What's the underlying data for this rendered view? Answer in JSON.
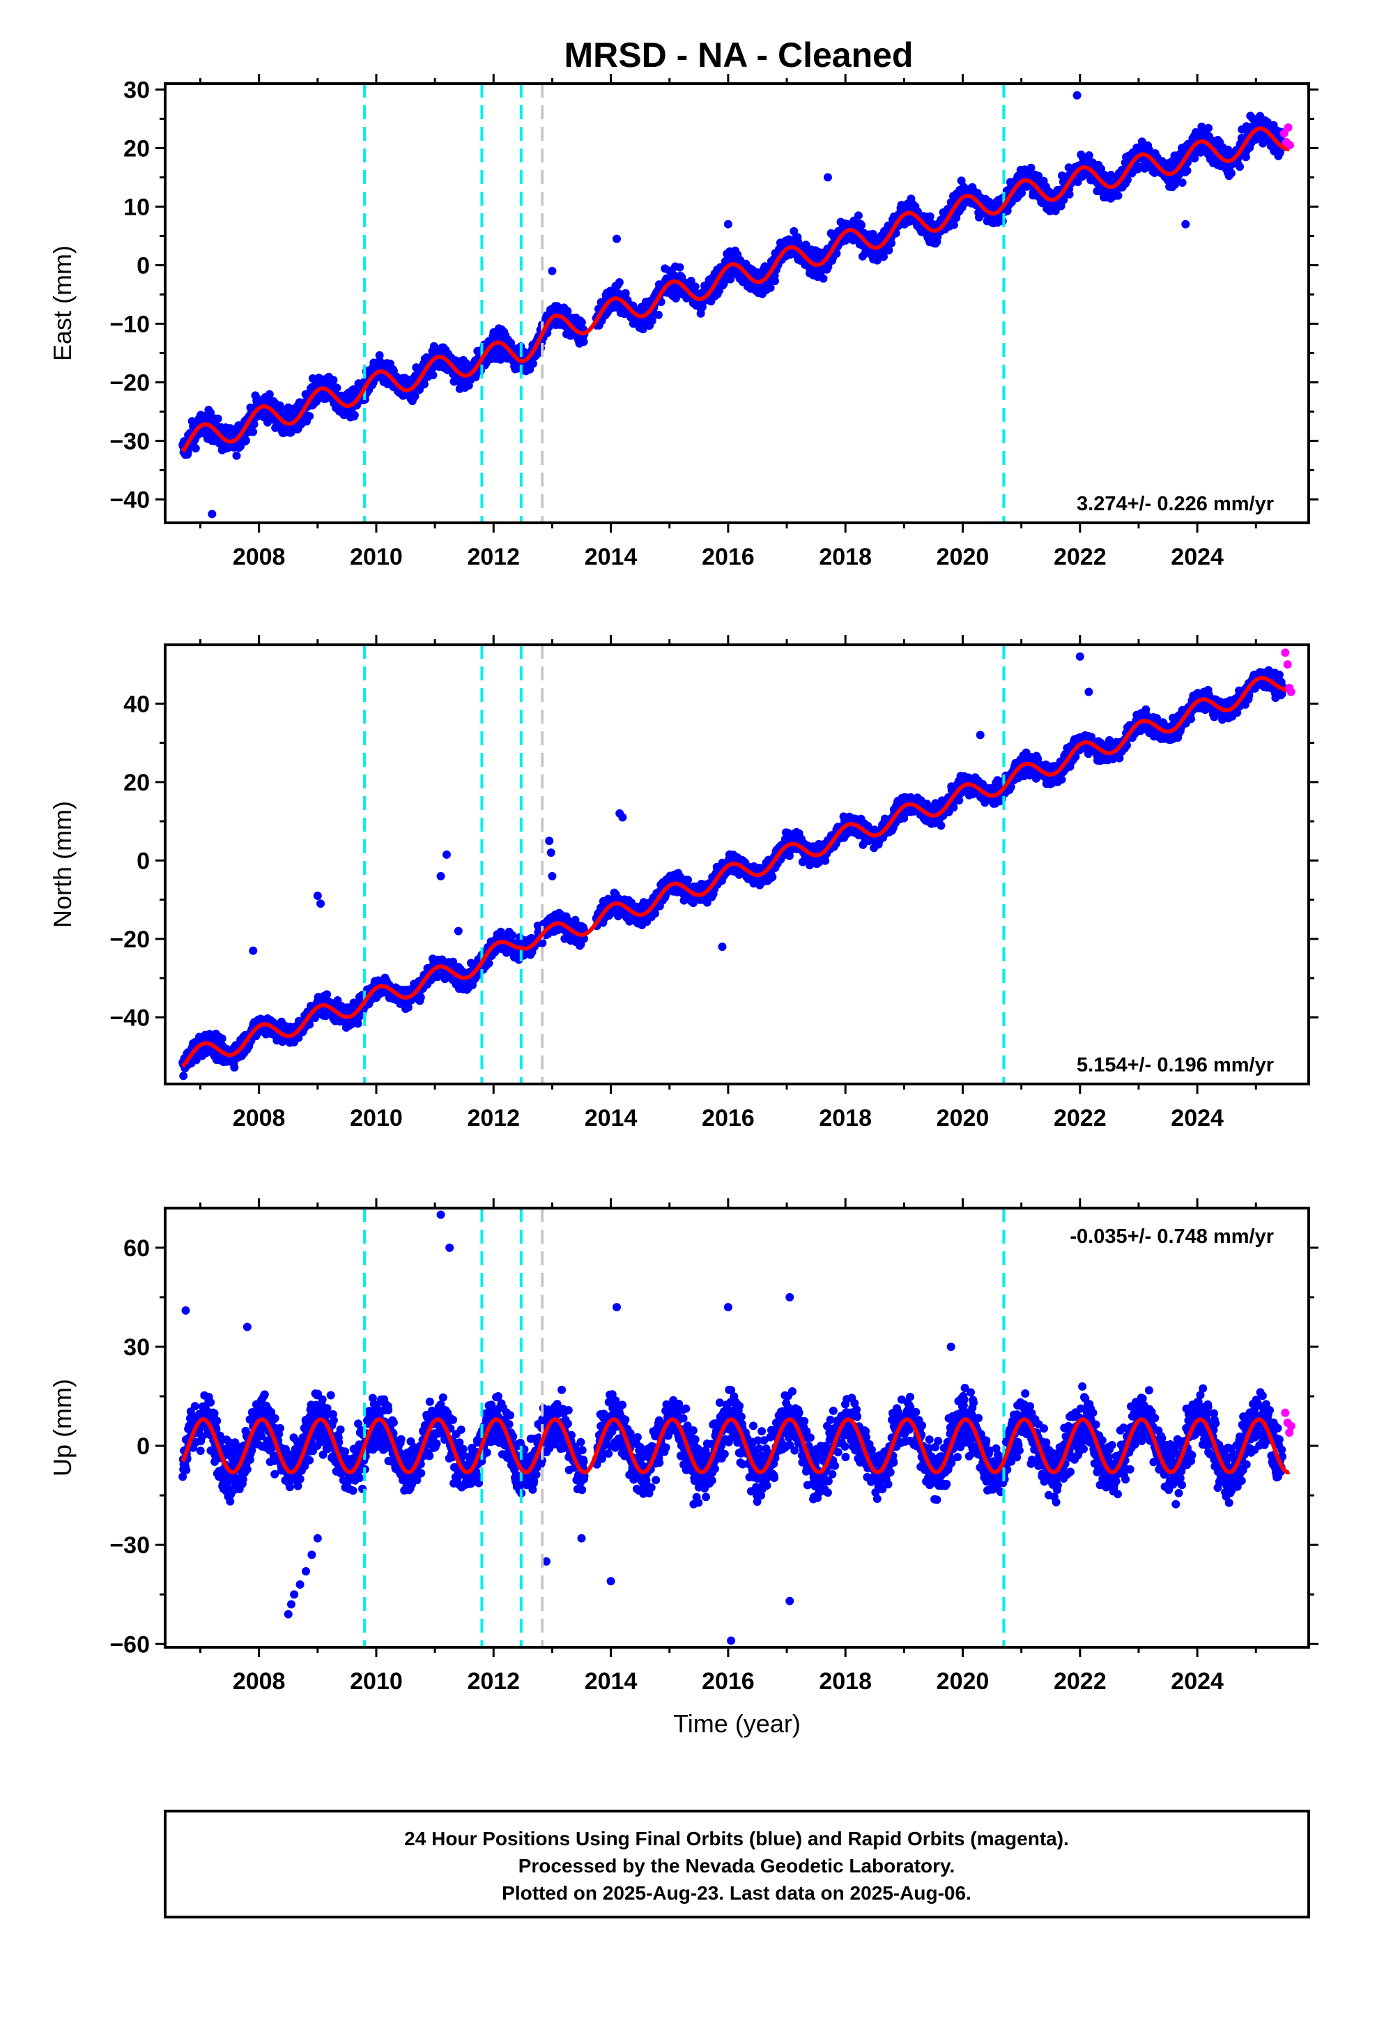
{
  "title": "MRSD  - NA - Cleaned",
  "colors": {
    "final_orbits": "#0000ff",
    "rapid_orbits": "#ff00ff",
    "model_fit": "#ff0000",
    "equipment_change": "#00eeee",
    "other_event": "#c8c8c8"
  },
  "footer": {
    "line1": "24 Hour Positions Using Final Orbits (blue) and Rapid Orbits (magenta).",
    "line2": "Processed by the Nevada Geodetic Laboratory.",
    "line3": "Plotted on 2025-Aug-23. Last data on 2025-Aug-06."
  },
  "chart_data": [
    {
      "type": "scatter",
      "component": "east",
      "ylabel": "East (mm)",
      "xlabel": "",
      "xlim": [
        2006.4,
        2025.9
      ],
      "ylim": [
        -44,
        31
      ],
      "x_ticks": [
        "2008",
        "2010",
        "2012",
        "2014",
        "2016",
        "2018",
        "2020",
        "2022",
        "2024"
      ],
      "y_ticks": [
        "30",
        "20",
        "10",
        "0",
        "−10",
        "−20",
        "−30",
        "−40"
      ],
      "rate_label": "3.274+/- 0.226 mm/yr",
      "rate_position": "bottom-right",
      "event_lines": [
        {
          "year": 2009.8,
          "kind": "equipment_change"
        },
        {
          "year": 2011.8,
          "kind": "equipment_change"
        },
        {
          "year": 2012.47,
          "kind": "equipment_change"
        },
        {
          "year": 2012.83,
          "kind": "other_event"
        },
        {
          "year": 2020.7,
          "kind": "equipment_change"
        }
      ],
      "series": [
        {
          "role": "final_orbits",
          "start_year": 2006.7,
          "end_year": 2025.45,
          "noise_mm": 1.9,
          "trend_points": [
            [
              2006.7,
              -30.5
            ],
            [
              2009.8,
              -21
            ],
            [
              2011.8,
              -16
            ],
            [
              2012.47,
              -14.5
            ],
            [
              2013.0,
              -11
            ],
            [
              2020.7,
              11.5
            ],
            [
              2025.45,
              22
            ]
          ]
        },
        {
          "role": "rapid_orbits",
          "start_year": 2025.45,
          "end_year": 2025.6,
          "points": [
            [
              2025.48,
              22.5
            ],
            [
              2025.52,
              21
            ],
            [
              2025.55,
              23.5
            ],
            [
              2025.58,
              20.5
            ]
          ]
        },
        {
          "role": "model_fit",
          "seasonal_amplitude_mm": 2.2,
          "trend_points": [
            [
              2006.7,
              -30.5
            ],
            [
              2009.8,
              -21
            ],
            [
              2011.8,
              -16
            ],
            [
              2012.47,
              -14.5
            ],
            [
              2013.0,
              -11
            ],
            [
              2020.7,
              11.5
            ],
            [
              2025.45,
              22
            ]
          ]
        }
      ],
      "outliers": [
        [
          2007.2,
          -42.5
        ],
        [
          2021.95,
          29
        ],
        [
          2016.0,
          7
        ],
        [
          2017.7,
          15
        ],
        [
          2013.0,
          -1
        ],
        [
          2023.8,
          7
        ],
        [
          2014.1,
          4.5
        ]
      ]
    },
    {
      "type": "scatter",
      "component": "north",
      "ylabel": "North (mm)",
      "xlabel": "",
      "xlim": [
        2006.4,
        2025.9
      ],
      "ylim": [
        -57,
        55
      ],
      "x_ticks": [
        "2008",
        "2010",
        "2012",
        "2014",
        "2016",
        "2018",
        "2020",
        "2022",
        "2024"
      ],
      "y_ticks": [
        "40",
        "20",
        "0",
        "−20",
        "−40"
      ],
      "rate_label": "5.154+/- 0.196 mm/yr",
      "rate_position": "bottom-right",
      "event_lines": [
        {
          "year": 2009.8,
          "kind": "equipment_change"
        },
        {
          "year": 2011.8,
          "kind": "equipment_change"
        },
        {
          "year": 2012.47,
          "kind": "equipment_change"
        },
        {
          "year": 2012.83,
          "kind": "other_event"
        },
        {
          "year": 2020.7,
          "kind": "equipment_change"
        }
      ],
      "series": [
        {
          "role": "final_orbits",
          "start_year": 2006.7,
          "end_year": 2025.45,
          "noise_mm": 2.2,
          "trend_points": [
            [
              2006.7,
              -51
            ],
            [
              2009.8,
              -36
            ],
            [
              2011.8,
              -26
            ],
            [
              2012.47,
              -20
            ],
            [
              2013.0,
              -19
            ],
            [
              2020.7,
              20
            ],
            [
              2025.45,
              46
            ]
          ]
        },
        {
          "role": "rapid_orbits",
          "start_year": 2025.45,
          "end_year": 2025.6,
          "points": [
            [
              2025.5,
              53
            ],
            [
              2025.54,
              50
            ],
            [
              2025.57,
              44
            ],
            [
              2025.6,
              43
            ]
          ]
        },
        {
          "role": "model_fit",
          "seasonal_amplitude_mm": 2.6,
          "trend_points": [
            [
              2006.7,
              -51
            ],
            [
              2009.8,
              -36
            ],
            [
              2011.8,
              -26
            ],
            [
              2012.47,
              -20
            ],
            [
              2013.0,
              -19
            ],
            [
              2020.7,
              20
            ],
            [
              2025.45,
              46
            ]
          ]
        }
      ],
      "outliers": [
        [
          2007.9,
          -23
        ],
        [
          2009.0,
          -9
        ],
        [
          2009.05,
          -11
        ],
        [
          2011.2,
          1.5
        ],
        [
          2011.1,
          -4
        ],
        [
          2011.4,
          -18
        ],
        [
          2012.95,
          5
        ],
        [
          2012.98,
          2
        ],
        [
          2013.0,
          -4
        ],
        [
          2014.15,
          12
        ],
        [
          2014.2,
          11
        ],
        [
          2015.9,
          -22
        ],
        [
          2018.3,
          4
        ],
        [
          2022.0,
          52
        ],
        [
          2022.15,
          43
        ],
        [
          2020.3,
          32
        ]
      ]
    },
    {
      "type": "scatter",
      "component": "up",
      "ylabel": "Up (mm)",
      "xlabel": "Time (year)",
      "xlim": [
        2006.4,
        2025.9
      ],
      "ylim": [
        -61,
        72
      ],
      "x_ticks": [
        "2008",
        "2010",
        "2012",
        "2014",
        "2016",
        "2018",
        "2020",
        "2022",
        "2024"
      ],
      "y_ticks": [
        "60",
        "30",
        "0",
        "−30",
        "−60"
      ],
      "rate_label": "-0.035+/- 0.748 mm/yr",
      "rate_position": "top-right",
      "event_lines": [
        {
          "year": 2009.8,
          "kind": "equipment_change"
        },
        {
          "year": 2011.8,
          "kind": "equipment_change"
        },
        {
          "year": 2012.47,
          "kind": "equipment_change"
        },
        {
          "year": 2012.83,
          "kind": "other_event"
        },
        {
          "year": 2020.7,
          "kind": "equipment_change"
        }
      ],
      "series": [
        {
          "role": "final_orbits",
          "start_year": 2006.7,
          "end_year": 2025.45,
          "noise_mm": 7,
          "trend_points": [
            [
              2006.7,
              0
            ],
            [
              2025.45,
              0
            ]
          ]
        },
        {
          "role": "rapid_orbits",
          "start_year": 2025.45,
          "end_year": 2025.6,
          "points": [
            [
              2025.5,
              10
            ],
            [
              2025.54,
              7
            ],
            [
              2025.57,
              4
            ],
            [
              2025.6,
              6
            ]
          ]
        },
        {
          "role": "model_fit",
          "seasonal_amplitude_mm": 8,
          "trend_points": [
            [
              2006.7,
              0
            ],
            [
              2025.45,
              0
            ]
          ]
        }
      ],
      "outliers": [
        [
          2006.75,
          41
        ],
        [
          2007.8,
          36
        ],
        [
          2008.5,
          -51
        ],
        [
          2008.55,
          -48
        ],
        [
          2008.6,
          -45
        ],
        [
          2008.7,
          -42
        ],
        [
          2008.8,
          -38
        ],
        [
          2008.9,
          -33
        ],
        [
          2009.0,
          -28
        ],
        [
          2011.1,
          70
        ],
        [
          2011.25,
          60
        ],
        [
          2014.1,
          42
        ],
        [
          2014.0,
          -41
        ],
        [
          2016.0,
          42
        ],
        [
          2016.05,
          -59
        ],
        [
          2017.05,
          45
        ],
        [
          2017.05,
          -47
        ],
        [
          2019.8,
          30
        ],
        [
          2012.9,
          -35
        ],
        [
          2013.5,
          -28
        ]
      ]
    }
  ]
}
